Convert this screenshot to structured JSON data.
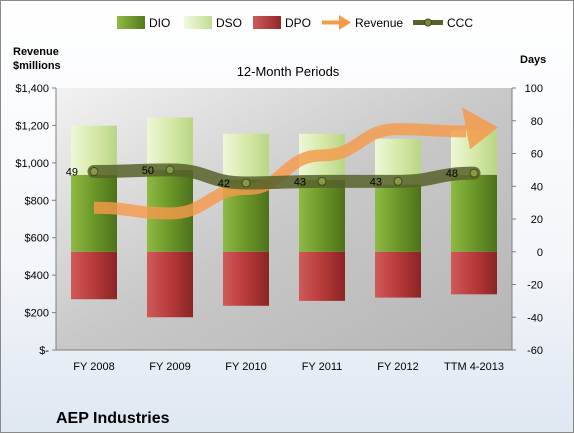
{
  "chart_data": {
    "type": "bar",
    "title": "12-Month Periods",
    "company": "AEP Industries",
    "left_axis": {
      "label_line1": "Revenue",
      "label_line2": "$millions",
      "range": [
        0,
        1400
      ],
      "ticks": [
        0,
        200,
        400,
        600,
        800,
        1000,
        1200,
        1400
      ],
      "tick_labels": [
        "$-",
        "$200",
        "$400",
        "$600",
        "$800",
        "$1,000",
        "$1,200",
        "$1,400"
      ]
    },
    "right_axis": {
      "label": "Days",
      "range": [
        -60,
        100
      ],
      "ticks": [
        -60,
        -40,
        -20,
        0,
        20,
        40,
        60,
        80,
        100
      ],
      "tick_labels": [
        "-60",
        "-40",
        "-20",
        "0",
        "20",
        "40",
        "60",
        "80",
        "100"
      ]
    },
    "categories": [
      "FY 2008",
      "FY 2009",
      "FY 2010",
      "FY 2011",
      "FY 2012",
      "TTM 4-2013"
    ],
    "legend": [
      "DIO",
      "DSO",
      "DPO",
      "Revenue",
      "CCC"
    ],
    "series": [
      {
        "name": "DIO",
        "axis": "right",
        "kind": "bar",
        "values": [
          47,
          50,
          44,
          44,
          41,
          47
        ]
      },
      {
        "name": "DSO",
        "axis": "right",
        "kind": "bar",
        "values": [
          30,
          32,
          28,
          28,
          28,
          27
        ]
      },
      {
        "name": "DPO",
        "axis": "right",
        "kind": "bar",
        "values": [
          -29,
          -40,
          -33,
          -30,
          -28,
          -26
        ]
      },
      {
        "name": "Revenue",
        "axis": "left",
        "kind": "trend-arrow",
        "values": [
          760,
          730,
          860,
          1040,
          1180,
          1200
        ]
      },
      {
        "name": "CCC",
        "axis": "right",
        "kind": "line",
        "values": [
          49,
          50,
          42,
          43,
          43,
          48
        ]
      }
    ],
    "data_labels": [
      "49",
      "50",
      "42",
      "43",
      "43",
      "48"
    ],
    "colors": {
      "DIO": "#6e9a2b",
      "DSO": "#d6eaa8",
      "DPO": "#b83a3a",
      "Revenue": "#f59a4a",
      "CCC": "#56622a",
      "plot_bg": "#c9c9c9"
    }
  }
}
